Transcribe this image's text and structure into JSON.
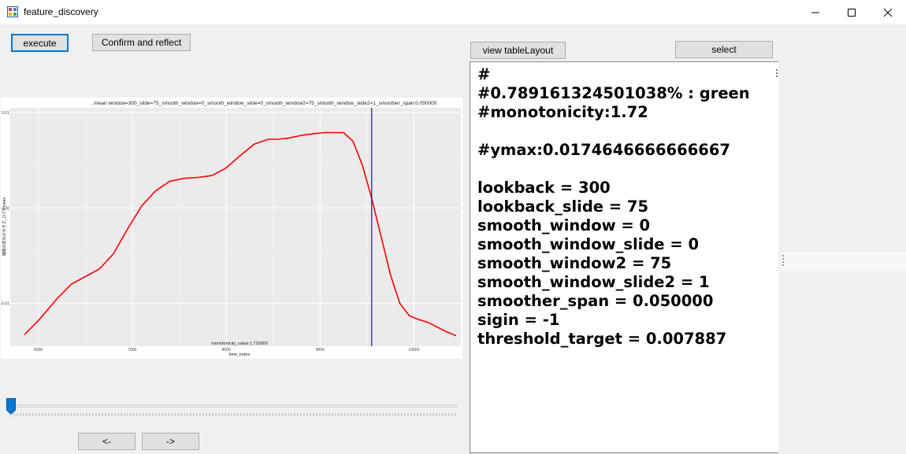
{
  "window": {
    "title": "feature_discovery"
  },
  "toolbar": {
    "execute_label": "execute",
    "confirm_label": "Confirm and reflect",
    "view_table_label": "view tableLayout",
    "select_label": "select"
  },
  "nav": {
    "prev_label": "<-",
    "next_label": "->"
  },
  "slider": {
    "value": 0
  },
  "text_output": {
    "content": "#\n#0.789161324501038% : green\n#monotonicity:1.72\n\n#ymax:0.0174646666666667\n\nlookback = 300\nlookback_slide = 75\nsmooth_window = 0\nsmooth_window_slide = 0\nsmooth_window2 = 75\nsmooth_window_slide2 = 1\nsmoother_span = 0.050000\nsigin = -1\nthreshold_target = 0.007887"
  },
  "chart_data": {
    "type": "line",
    "title": "..mean window=300_slide=75_smooth_window=0_smooth_window_slide=0_smooth_window2=75_smooth_window_slide2=1_smoother_span:0.050000",
    "xlabel": "time_index",
    "ylabel": "価格の変化の大きさ_ログ4.mean",
    "annotation": "monotonicity_value:1.720000",
    "xlim": [
      5700,
      10500
    ],
    "ylim": [
      -0.0145,
      0.0105
    ],
    "x_ticks": [
      6000,
      7000,
      8000,
      9000,
      10000
    ],
    "y_ticks": [
      0.01,
      0.0,
      -0.01
    ],
    "y_tick_labels": [
      "0.01",
      "0.00",
      "-0.01"
    ],
    "vline_x": 9550,
    "grid": true,
    "series": [
      {
        "color": "#ff0000",
        "x": [
          5850,
          6000,
          6200,
          6350,
          6500,
          6650,
          6800,
          6950,
          7100,
          7250,
          7400,
          7550,
          7700,
          7850,
          8000,
          8150,
          8300,
          8450,
          8550,
          8650,
          8800,
          8950,
          9050,
          9150,
          9250,
          9350,
          9450,
          9550,
          9650,
          9750,
          9850,
          9950,
          10050,
          10150,
          10250,
          10350,
          10450
        ],
        "y": [
          -0.0133,
          -0.0118,
          -0.0095,
          -0.008,
          -0.0072,
          -0.0064,
          -0.0048,
          -0.0022,
          0.0002,
          0.0018,
          0.0028,
          0.0031,
          0.0032,
          0.0034,
          0.0042,
          0.0055,
          0.0067,
          0.0072,
          0.0072,
          0.0073,
          0.0076,
          0.0078,
          0.0079,
          0.0079,
          0.0079,
          0.007,
          0.0045,
          0.001,
          -0.003,
          -0.007,
          -0.01,
          -0.0113,
          -0.0117,
          -0.012,
          -0.0125,
          -0.013,
          -0.0134
        ]
      }
    ]
  },
  "colors": {
    "accent": "#0078d7",
    "line": "#ff0000",
    "vline": "#1a1a8e",
    "plot_bg": "#ebebeb"
  }
}
